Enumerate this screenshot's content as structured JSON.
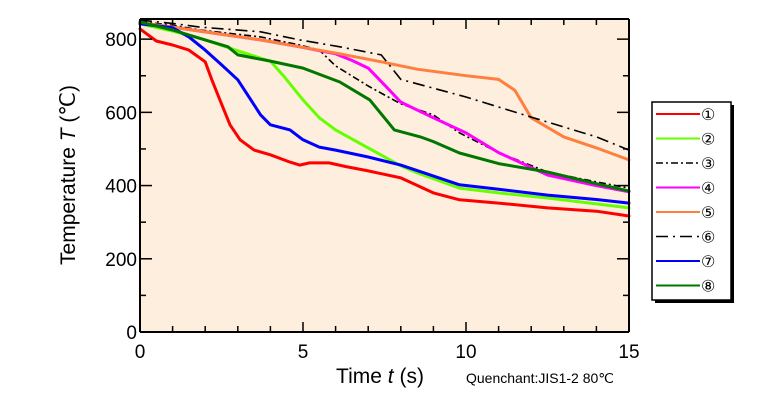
{
  "chart_data": {
    "type": "line",
    "title": "",
    "xlabel_prefix": "Time ",
    "xlabel_var": "t",
    "xlabel_suffix": " (s)",
    "ylabel_prefix": "Temperature ",
    "ylabel_var": "T",
    "ylabel_suffix": " (℃)",
    "annotation": "Quenchant:JIS1-2 80℃",
    "xlim": [
      0,
      15
    ],
    "ylim": [
      0,
      855
    ],
    "x_ticks": [
      0,
      5,
      10,
      15
    ],
    "x_tick_labels": [
      "0",
      "5",
      "10",
      "15"
    ],
    "x_minor_step": 1,
    "y_ticks": [
      0,
      200,
      400,
      600,
      800
    ],
    "y_tick_labels": [
      "0",
      "200",
      "400",
      "600",
      "800"
    ],
    "y_minor_step": 100,
    "grid": false,
    "plot_background": "#fdeedd",
    "legend_position": "right",
    "series": [
      {
        "name": "①",
        "color": "#ff0000",
        "dash": "solid",
        "points": [
          [
            0,
            828
          ],
          [
            0.5,
            795
          ],
          [
            1,
            784
          ],
          [
            1.5,
            770
          ],
          [
            2,
            738
          ],
          [
            2.2,
            690
          ],
          [
            2.45,
            634
          ],
          [
            2.76,
            566
          ],
          [
            3.07,
            525
          ],
          [
            3.5,
            497
          ],
          [
            4,
            484
          ],
          [
            4.6,
            464
          ],
          [
            4.9,
            456
          ],
          [
            5.2,
            462
          ],
          [
            5.8,
            462
          ],
          [
            6.3,
            452
          ],
          [
            7,
            440
          ],
          [
            8,
            421
          ],
          [
            9,
            380
          ],
          [
            9.8,
            361
          ],
          [
            11,
            352
          ],
          [
            12.5,
            339
          ],
          [
            14,
            330
          ],
          [
            15,
            317
          ]
        ]
      },
      {
        "name": "②",
        "color": "#66ff00",
        "dash": "solid",
        "points": [
          [
            0,
            842
          ],
          [
            1,
            822
          ],
          [
            2,
            798
          ],
          [
            3,
            768
          ],
          [
            3.7,
            748
          ],
          [
            4,
            740
          ],
          [
            4.4,
            700
          ],
          [
            5,
            634
          ],
          [
            5.5,
            585
          ],
          [
            6,
            552
          ],
          [
            7,
            503
          ],
          [
            8,
            454
          ],
          [
            8.5,
            435
          ],
          [
            9.8,
            393
          ],
          [
            11,
            380
          ],
          [
            12.5,
            366
          ],
          [
            14,
            350
          ],
          [
            15,
            339
          ]
        ]
      },
      {
        "name": "③",
        "color": "#000000",
        "dash": "dashdot",
        "points": [
          [
            0,
            848
          ],
          [
            1,
            838
          ],
          [
            1.84,
            825
          ],
          [
            3.7,
            806
          ],
          [
            4.9,
            784
          ],
          [
            5.5,
            770
          ],
          [
            6,
            727
          ],
          [
            7,
            672
          ],
          [
            8,
            623
          ],
          [
            9,
            593
          ],
          [
            9.8,
            544
          ],
          [
            11,
            490
          ],
          [
            12.5,
            437
          ],
          [
            14,
            410
          ],
          [
            15,
            393
          ]
        ]
      },
      {
        "name": "④",
        "color": "#ff00ff",
        "dash": "solid",
        "points": [
          [
            0,
            845
          ],
          [
            1,
            833
          ],
          [
            1.84,
            822
          ],
          [
            3.7,
            798
          ],
          [
            4.9,
            779
          ],
          [
            6,
            760
          ],
          [
            6.5,
            742
          ],
          [
            7,
            721
          ],
          [
            7.5,
            675
          ],
          [
            8,
            628
          ],
          [
            9,
            585
          ],
          [
            10,
            544
          ],
          [
            11,
            490
          ],
          [
            12.5,
            429
          ],
          [
            14,
            400
          ],
          [
            15,
            383
          ]
        ]
      },
      {
        "name": "⑤",
        "color": "#ff7f3f",
        "dash": "solid",
        "points": [
          [
            0,
            845
          ],
          [
            1,
            833
          ],
          [
            1.84,
            822
          ],
          [
            3.7,
            798
          ],
          [
            4.9,
            779
          ],
          [
            6.13,
            760
          ],
          [
            7.4,
            738
          ],
          [
            8.5,
            718
          ],
          [
            10,
            700
          ],
          [
            11,
            690
          ],
          [
            11.5,
            660
          ],
          [
            12,
            585
          ],
          [
            13,
            533
          ],
          [
            14,
            503
          ],
          [
            15,
            470
          ]
        ]
      },
      {
        "name": "⑥",
        "color": "#000000",
        "dash": "dashdotlong",
        "points": [
          [
            0,
            852
          ],
          [
            1,
            843
          ],
          [
            1.84,
            833
          ],
          [
            3.7,
            820
          ],
          [
            4.9,
            798
          ],
          [
            6.13,
            779
          ],
          [
            7.4,
            757
          ],
          [
            8,
            690
          ],
          [
            10,
            642
          ],
          [
            12,
            587
          ],
          [
            14,
            533
          ],
          [
            15,
            497
          ]
        ]
      },
      {
        "name": "⑦",
        "color": "#0000ff",
        "dash": "solid",
        "points": [
          [
            0,
            842
          ],
          [
            1,
            831
          ],
          [
            1.5,
            806
          ],
          [
            2,
            770
          ],
          [
            2.5,
            730
          ],
          [
            3,
            689
          ],
          [
            3.7,
            593
          ],
          [
            4,
            566
          ],
          [
            4.6,
            552
          ],
          [
            5,
            525
          ],
          [
            5.5,
            505
          ],
          [
            6,
            497
          ],
          [
            7,
            478
          ],
          [
            8,
            456
          ],
          [
            9.8,
            402
          ],
          [
            11,
            390
          ],
          [
            12.5,
            374
          ],
          [
            14,
            362
          ],
          [
            15,
            352
          ]
        ]
      },
      {
        "name": "⑧",
        "color": "#007700",
        "dash": "solid",
        "points": [
          [
            0,
            847
          ],
          [
            1,
            825
          ],
          [
            2,
            798
          ],
          [
            2.7,
            779
          ],
          [
            3,
            757
          ],
          [
            4,
            740
          ],
          [
            5,
            721
          ],
          [
            6.13,
            683
          ],
          [
            7.05,
            634
          ],
          [
            7.8,
            552
          ],
          [
            8.6,
            533
          ],
          [
            9,
            520
          ],
          [
            9.8,
            489
          ],
          [
            11,
            460
          ],
          [
            12.5,
            437
          ],
          [
            14,
            405
          ],
          [
            15,
            385
          ]
        ]
      }
    ]
  }
}
